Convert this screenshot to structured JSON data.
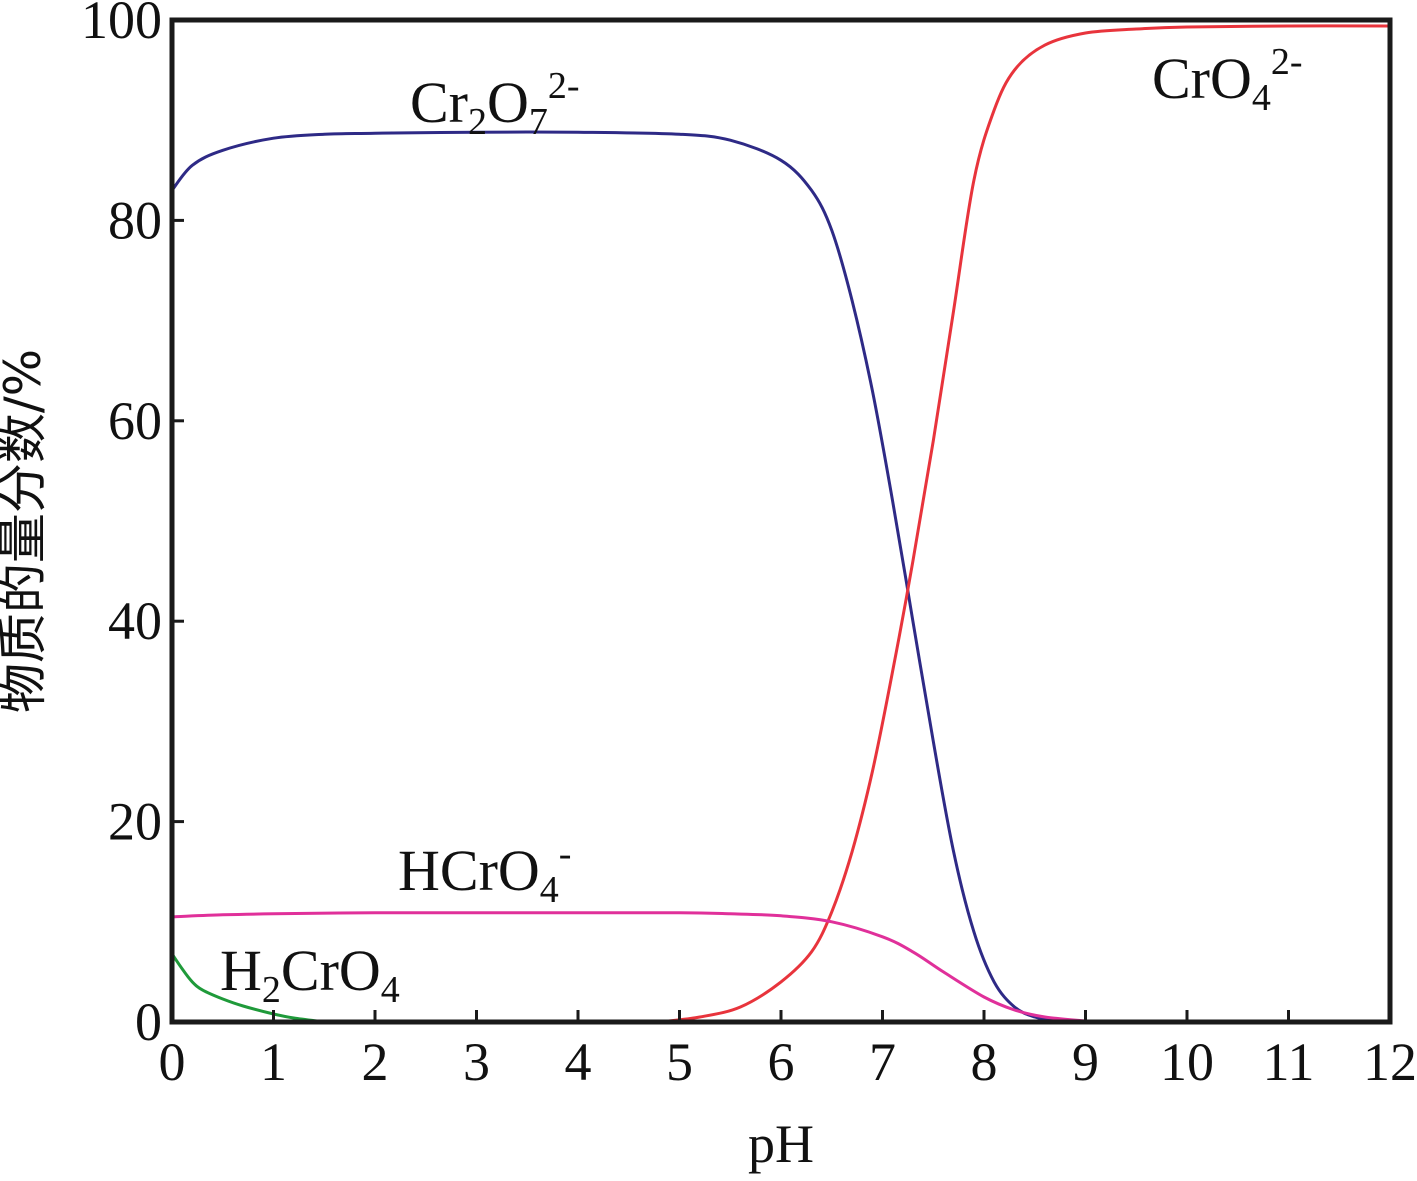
{
  "chart_data": {
    "type": "line",
    "xlabel": "pH",
    "ylabel": "物质的量分数/%",
    "xlim": [
      0,
      12
    ],
    "ylim": [
      0,
      100
    ],
    "xticks": [
      "0",
      "1",
      "2",
      "3",
      "4",
      "5",
      "6",
      "7",
      "8",
      "9",
      "10",
      "11",
      "12"
    ],
    "yticks": [
      "0",
      "20",
      "40",
      "60",
      "80",
      "100"
    ],
    "grid": false,
    "series": [
      {
        "name": "Cr2O7 2-",
        "label": {
          "base": "Cr",
          "sub1": "2",
          "mid": "O",
          "sub2": "7",
          "sup": "2-"
        },
        "color": "#2e2a86",
        "x": [
          0,
          0.2,
          0.5,
          1,
          1.5,
          2,
          3,
          4,
          5,
          5.5,
          6,
          6.3,
          6.5,
          6.7,
          6.9,
          7.1,
          7.3,
          7.5,
          7.7,
          7.9,
          8.1,
          8.3,
          8.5,
          8.7,
          9.0
        ],
        "y": [
          83,
          85.5,
          87,
          88.2,
          88.6,
          88.7,
          88.8,
          88.8,
          88.6,
          88,
          86,
          83,
          79,
          72,
          63,
          52,
          40,
          28,
          17,
          9,
          4,
          1.5,
          0.5,
          0.2,
          0
        ]
      },
      {
        "name": "CrO4 2-",
        "label": {
          "base": "CrO",
          "sub1": "4",
          "sup": "2-"
        },
        "color": "#e8343c",
        "x": [
          4.8,
          5.2,
          5.6,
          6.0,
          6.3,
          6.5,
          6.7,
          6.9,
          7.1,
          7.3,
          7.5,
          7.7,
          7.9,
          8.1,
          8.3,
          8.6,
          9.0,
          9.5,
          10,
          11,
          12
        ],
        "y": [
          0,
          0.5,
          1.5,
          4,
          7,
          11,
          17,
          25,
          35,
          46,
          58,
          71,
          84,
          91,
          95,
          97.5,
          98.7,
          99.1,
          99.3,
          99.4,
          99.4
        ]
      },
      {
        "name": "HCrO4 -",
        "label": {
          "base": "HCrO",
          "sub1": "4",
          "sup": "-"
        },
        "color": "#e0309a",
        "x": [
          0,
          0.5,
          1,
          2,
          3,
          4,
          5,
          5.5,
          6,
          6.5,
          7,
          7.3,
          7.6,
          8,
          8.3,
          8.6,
          9.0
        ],
        "y": [
          10.5,
          10.7,
          10.8,
          10.9,
          10.9,
          10.9,
          10.9,
          10.8,
          10.6,
          10.0,
          8.5,
          7,
          5,
          2.5,
          1.2,
          0.5,
          0.1
        ]
      },
      {
        "name": "H2CrO4",
        "label": {
          "base": "H",
          "sub1": "2",
          "mid": "CrO",
          "sub2": "4"
        },
        "color": "#1f9a3a",
        "x": [
          0,
          0.1,
          0.2,
          0.3,
          0.5,
          0.7,
          1.0,
          1.2,
          1.5
        ],
        "y": [
          6.8,
          5.3,
          4.0,
          3.2,
          2.3,
          1.6,
          0.8,
          0.4,
          0
        ]
      }
    ]
  }
}
